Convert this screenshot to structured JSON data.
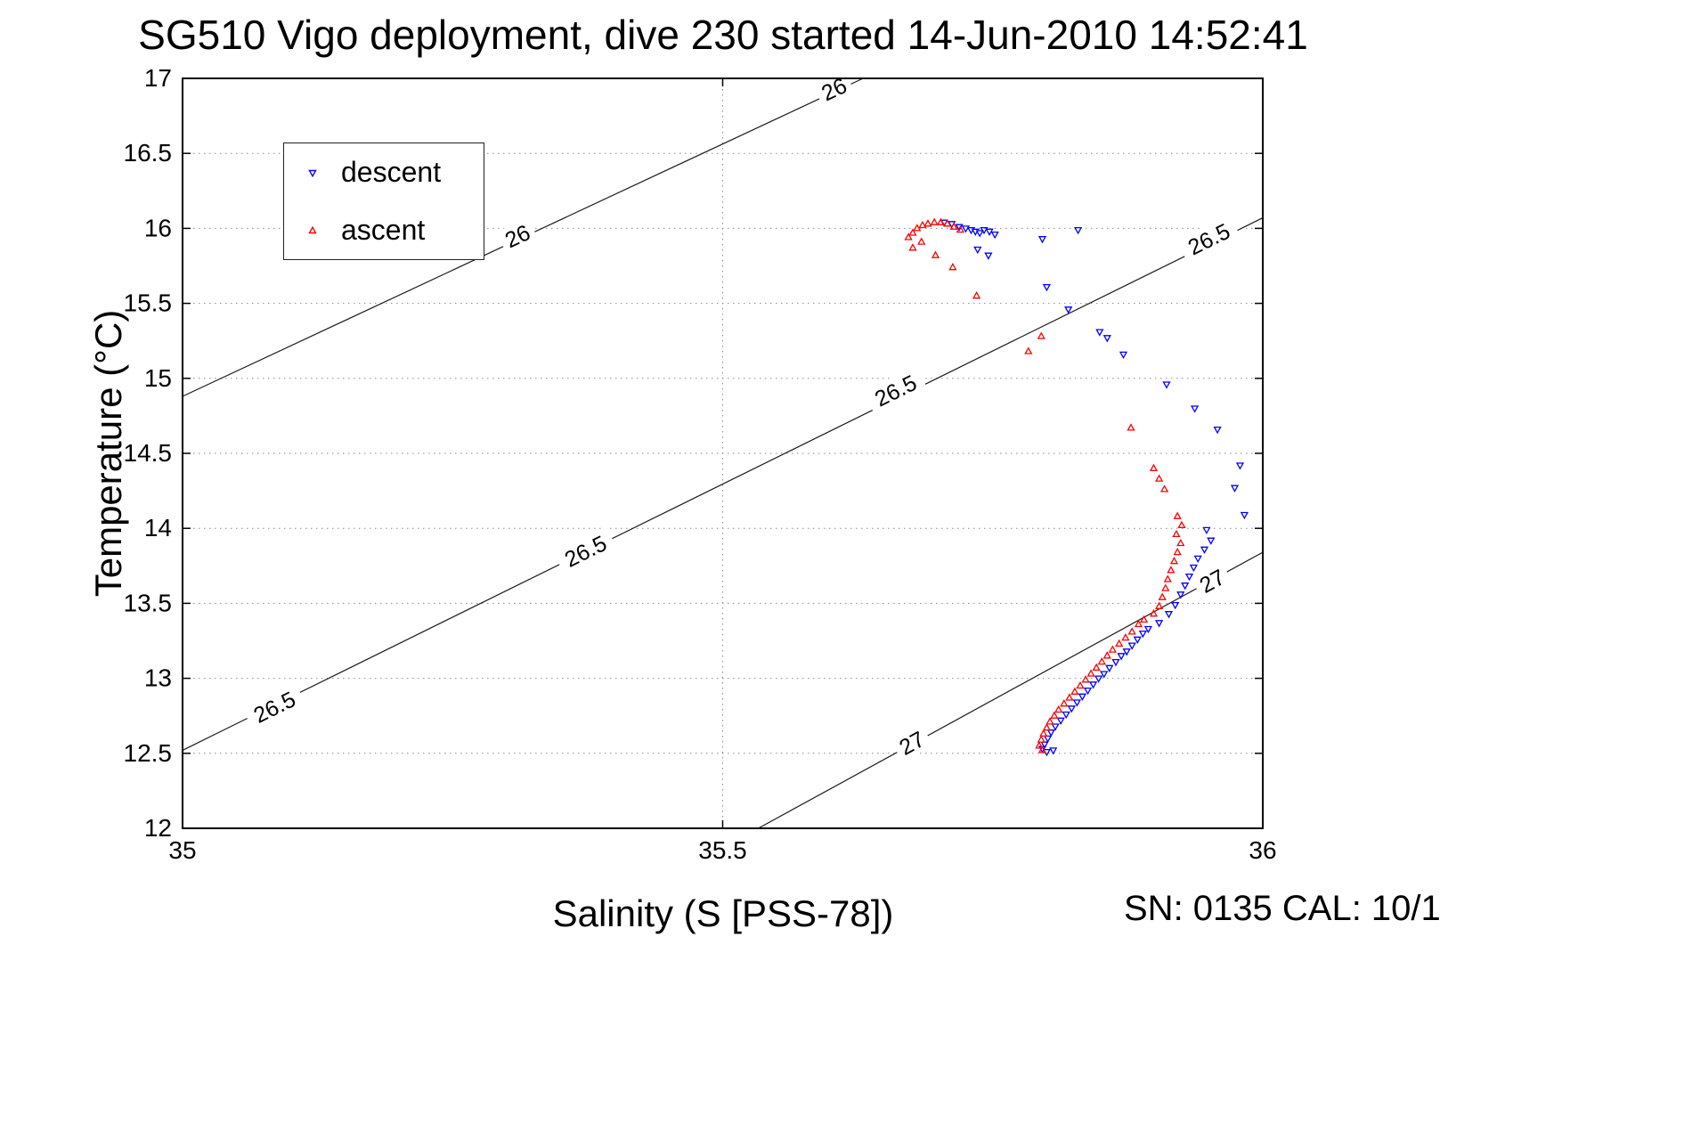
{
  "title": "SG510 Vigo deployment, dive 230 started 14-Jun-2010 14:52:41",
  "footer": {
    "sn_cal": "SN: 0135  CAL: 10/1"
  },
  "chart_data": {
    "type": "scatter",
    "title": "SG510 Vigo deployment, dive 230 started 14-Jun-2010 14:52:41",
    "xlabel": "Salinity (S [PSS-78])",
    "ylabel": "Temperature (°C)",
    "xlim": [
      35,
      36
    ],
    "ylim": [
      12,
      17
    ],
    "xticks": [
      "35",
      "35.5",
      "36"
    ],
    "yticks": [
      "12",
      "12.5",
      "13",
      "13.5",
      "14",
      "14.5",
      "15",
      "15.5",
      "16",
      "16.5",
      "17"
    ],
    "grid": true,
    "legend": {
      "position": "upper-left",
      "entries": [
        {
          "label": "descent",
          "marker": "triangle-down",
          "color": "#0000ff"
        },
        {
          "label": "ascent",
          "marker": "triangle-up",
          "color": "#ff0000"
        }
      ]
    },
    "contours": [
      {
        "level": "26",
        "points": [
          [
            35.0,
            14.88
          ],
          [
            35.63,
            17.0
          ]
        ],
        "labels": [
          [
            35.31,
            15.95
          ],
          [
            35.603,
            16.93
          ]
        ]
      },
      {
        "level": "26.5",
        "points": [
          [
            35.0,
            12.52
          ],
          [
            36.0,
            16.07
          ]
        ],
        "labels": [
          [
            35.085,
            12.81
          ],
          [
            35.373,
            13.85
          ],
          [
            35.66,
            14.92
          ],
          [
            35.95,
            15.93
          ]
        ]
      },
      {
        "level": "27",
        "points": [
          [
            35.533,
            12.0
          ],
          [
            36.0,
            13.84
          ]
        ],
        "labels": [
          [
            35.675,
            12.57
          ],
          [
            35.953,
            13.65
          ]
        ]
      }
    ],
    "series": [
      {
        "name": "descent",
        "marker": "triangle-down",
        "color": "#0000ff",
        "points": [
          [
            35.705,
            16.04
          ],
          [
            35.712,
            16.03
          ],
          [
            35.719,
            16.01
          ],
          [
            35.725,
            16.0
          ],
          [
            35.73,
            15.99
          ],
          [
            35.734,
            15.98
          ],
          [
            35.738,
            15.97
          ],
          [
            35.742,
            15.99
          ],
          [
            35.747,
            15.98
          ],
          [
            35.752,
            15.96
          ],
          [
            35.736,
            15.86
          ],
          [
            35.746,
            15.82
          ],
          [
            35.796,
            15.93
          ],
          [
            35.829,
            15.99
          ],
          [
            35.8,
            15.61
          ],
          [
            35.82,
            15.46
          ],
          [
            35.849,
            15.31
          ],
          [
            35.856,
            15.27
          ],
          [
            35.871,
            15.16
          ],
          [
            35.911,
            14.96
          ],
          [
            35.937,
            14.8
          ],
          [
            35.958,
            14.66
          ],
          [
            35.979,
            14.42
          ],
          [
            35.974,
            14.27
          ],
          [
            35.983,
            14.09
          ],
          [
            35.948,
            13.99
          ],
          [
            35.952,
            13.92
          ],
          [
            35.946,
            13.86
          ],
          [
            35.94,
            13.8
          ],
          [
            35.936,
            13.74
          ],
          [
            35.932,
            13.68
          ],
          [
            35.928,
            13.62
          ],
          [
            35.924,
            13.56
          ],
          [
            35.919,
            13.49
          ],
          [
            35.913,
            13.43
          ],
          [
            35.904,
            13.37
          ],
          [
            35.894,
            13.33
          ],
          [
            35.889,
            13.3
          ],
          [
            35.884,
            13.26
          ],
          [
            35.879,
            13.22
          ],
          [
            35.874,
            13.18
          ],
          [
            35.869,
            13.15
          ],
          [
            35.864,
            13.11
          ],
          [
            35.858,
            13.07
          ],
          [
            35.853,
            13.03
          ],
          [
            35.848,
            13.0
          ],
          [
            35.843,
            12.96
          ],
          [
            35.838,
            12.92
          ],
          [
            35.833,
            12.88
          ],
          [
            35.828,
            12.84
          ],
          [
            35.823,
            12.8
          ],
          [
            35.818,
            12.76
          ],
          [
            35.813,
            12.72
          ],
          [
            35.808,
            12.68
          ],
          [
            35.804,
            12.64
          ],
          [
            35.801,
            12.6
          ],
          [
            35.798,
            12.56
          ],
          [
            35.796,
            12.53
          ],
          [
            35.8,
            12.51
          ],
          [
            35.806,
            12.52
          ]
        ]
      },
      {
        "name": "ascent",
        "marker": "triangle-up",
        "color": "#ff0000",
        "points": [
          [
            35.672,
            15.94
          ],
          [
            35.676,
            15.97
          ],
          [
            35.68,
            16.0
          ],
          [
            35.685,
            16.02
          ],
          [
            35.69,
            16.03
          ],
          [
            35.696,
            16.04
          ],
          [
            35.702,
            16.04
          ],
          [
            35.708,
            16.03
          ],
          [
            35.714,
            16.01
          ],
          [
            35.72,
            15.99
          ],
          [
            35.684,
            15.91
          ],
          [
            35.676,
            15.87
          ],
          [
            35.697,
            15.82
          ],
          [
            35.713,
            15.74
          ],
          [
            35.735,
            15.55
          ],
          [
            35.783,
            15.18
          ],
          [
            35.795,
            15.28
          ],
          [
            35.878,
            14.67
          ],
          [
            35.899,
            14.4
          ],
          [
            35.904,
            14.33
          ],
          [
            35.909,
            14.26
          ],
          [
            35.921,
            14.08
          ],
          [
            35.925,
            14.02
          ],
          [
            35.92,
            13.96
          ],
          [
            35.924,
            13.9
          ],
          [
            35.921,
            13.84
          ],
          [
            35.918,
            13.78
          ],
          [
            35.915,
            13.72
          ],
          [
            35.912,
            13.66
          ],
          [
            35.91,
            13.6
          ],
          [
            35.907,
            13.54
          ],
          [
            35.904,
            13.48
          ],
          [
            35.899,
            13.43
          ],
          [
            35.89,
            13.39
          ],
          [
            35.885,
            13.36
          ],
          [
            35.879,
            13.31
          ],
          [
            35.873,
            13.27
          ],
          [
            35.867,
            13.23
          ],
          [
            35.861,
            13.19
          ],
          [
            35.856,
            13.15
          ],
          [
            35.851,
            13.11
          ],
          [
            35.846,
            13.07
          ],
          [
            35.841,
            13.03
          ],
          [
            35.836,
            12.99
          ],
          [
            35.831,
            12.95
          ],
          [
            35.826,
            12.91
          ],
          [
            35.821,
            12.87
          ],
          [
            35.816,
            12.83
          ],
          [
            35.811,
            12.79
          ],
          [
            35.807,
            12.75
          ],
          [
            35.803,
            12.71
          ],
          [
            35.8,
            12.67
          ],
          [
            35.797,
            12.63
          ],
          [
            35.795,
            12.59
          ],
          [
            35.793,
            12.55
          ],
          [
            35.796,
            12.52
          ]
        ]
      }
    ]
  }
}
